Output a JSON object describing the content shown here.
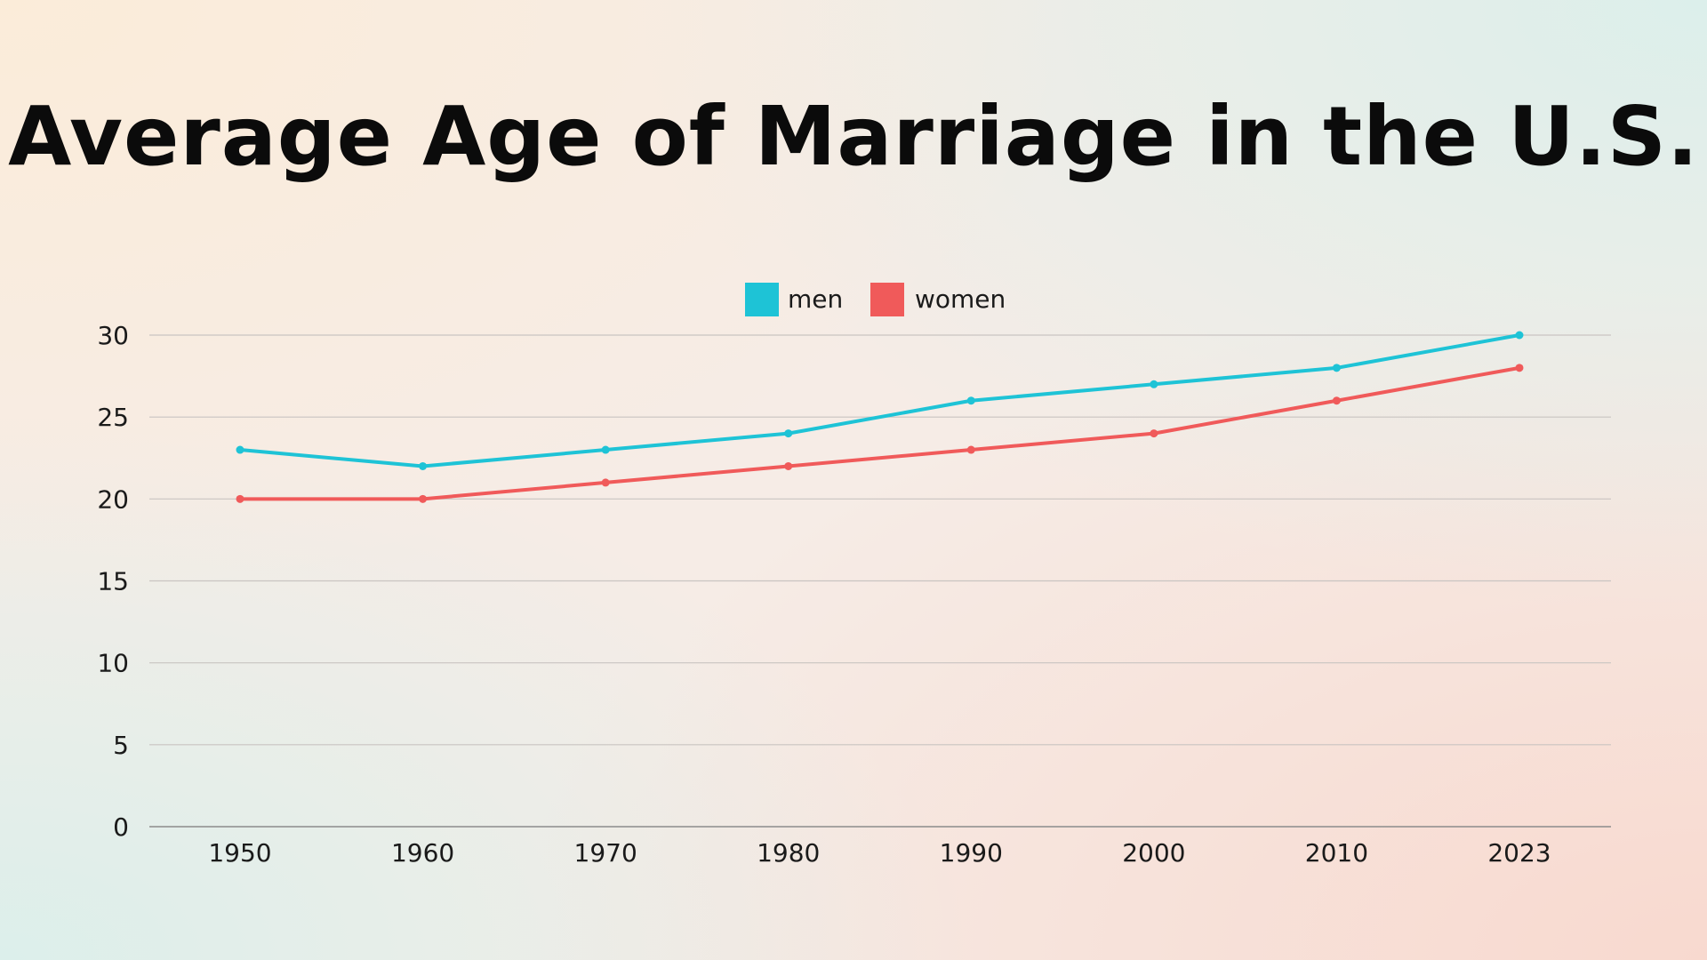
{
  "chart_data": {
    "type": "line",
    "title": "Average Age of Marriage in the U.S.",
    "categories": [
      "1950",
      "1960",
      "1970",
      "1980",
      "1990",
      "2000",
      "2010",
      "2023"
    ],
    "series": [
      {
        "name": "men",
        "color": "#1ec3d6",
        "values": [
          23,
          22,
          23,
          24,
          26,
          27,
          28,
          30
        ]
      },
      {
        "name": "women",
        "color": "#f05a5a",
        "values": [
          20,
          20,
          21,
          22,
          23,
          24,
          26,
          28
        ]
      }
    ],
    "yticks": [
      0,
      5,
      10,
      15,
      20,
      25,
      30
    ],
    "ylim": [
      0,
      30
    ],
    "xlabel": "",
    "ylabel": "",
    "grid": true,
    "legend_position": "top-center"
  }
}
